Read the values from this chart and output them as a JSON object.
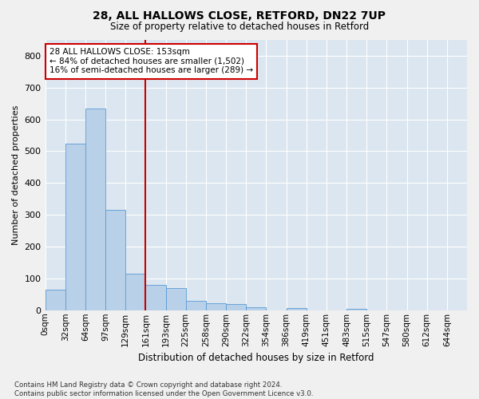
{
  "title1": "28, ALL HALLOWS CLOSE, RETFORD, DN22 7UP",
  "title2": "Size of property relative to detached houses in Retford",
  "xlabel": "Distribution of detached houses by size in Retford",
  "ylabel": "Number of detached properties",
  "footnote": "Contains HM Land Registry data © Crown copyright and database right 2024.\nContains public sector information licensed under the Open Government Licence v3.0.",
  "bin_labels": [
    "0sqm",
    "32sqm",
    "64sqm",
    "97sqm",
    "129sqm",
    "161sqm",
    "193sqm",
    "225sqm",
    "258sqm",
    "290sqm",
    "322sqm",
    "354sqm",
    "386sqm",
    "419sqm",
    "451sqm",
    "483sqm",
    "515sqm",
    "547sqm",
    "580sqm",
    "612sqm",
    "644sqm"
  ],
  "bar_values": [
    65,
    525,
    635,
    315,
    115,
    80,
    70,
    30,
    22,
    20,
    10,
    0,
    8,
    0,
    0,
    5,
    0,
    0,
    0,
    0,
    0
  ],
  "bar_color": "#b8d0e8",
  "bar_edge_color": "#5b9bd5",
  "vline_x": 5,
  "vline_color": "#cc0000",
  "annotation_box_text": "28 ALL HALLOWS CLOSE: 153sqm\n← 84% of detached houses are smaller (1,502)\n16% of semi-detached houses are larger (289) →",
  "annotation_box_color": "#cc0000",
  "ylim": [
    0,
    850
  ],
  "yticks": [
    0,
    100,
    200,
    300,
    400,
    500,
    600,
    700,
    800
  ],
  "bg_color": "#dce6f0",
  "grid_color": "#ffffff",
  "fig_bg": "#f0f0f0"
}
